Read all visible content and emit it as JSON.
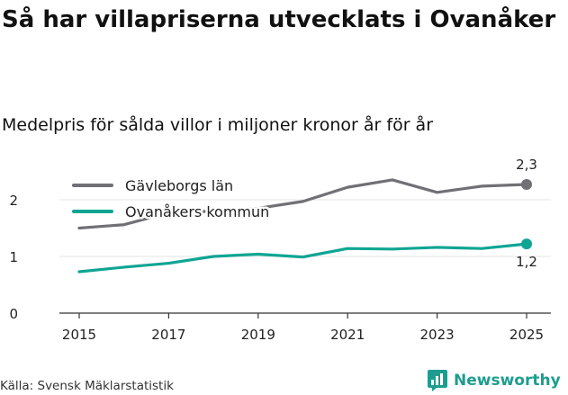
{
  "header": {
    "title": "Så har villapriserna utvecklats i Ovanåker",
    "subtitle": "Medelpris för sålda villor i miljoner kronor år för år"
  },
  "footer": {
    "source": "Källa: Svensk Mäklarstatistik",
    "brand": "Newsworthy"
  },
  "colors": {
    "gavleborg": "#717075",
    "ovanaker": "#0fa594",
    "axis": "#333333",
    "grid": "#e6e6e6",
    "brand": "#1d9d8f"
  },
  "chart_data": {
    "type": "line",
    "title": "Medelpris för sålda villor i miljoner kronor år för år",
    "xlabel": "",
    "ylabel": "",
    "x": [
      2015,
      2016,
      2017,
      2018,
      2019,
      2020,
      2021,
      2022,
      2023,
      2024,
      2025
    ],
    "xticks": [
      "2015",
      "2017",
      "2019",
      "2021",
      "2023",
      "2025"
    ],
    "yticks": [
      "0",
      "1",
      "2"
    ],
    "ylim": [
      0,
      2.5
    ],
    "legend_position": "top-left",
    "series": [
      {
        "name": "Gävleborgs län",
        "values": [
          1.5,
          1.56,
          1.77,
          1.8,
          1.85,
          1.97,
          2.22,
          2.35,
          2.13,
          2.24,
          2.27
        ],
        "end_label": "2,3"
      },
      {
        "name": "Ovanåkers kommun",
        "values": [
          0.73,
          0.81,
          0.88,
          1.0,
          1.04,
          0.99,
          1.14,
          1.13,
          1.16,
          1.14,
          1.22
        ],
        "end_label": "1,2"
      }
    ]
  }
}
